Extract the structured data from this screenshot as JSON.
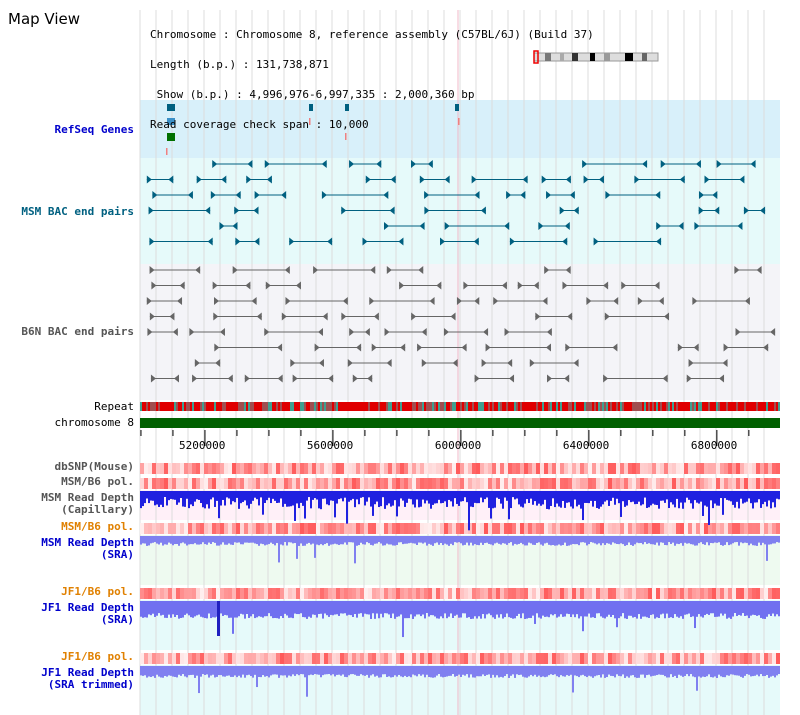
{
  "title": "Map View",
  "header": [
    {
      "key": "Chromosome",
      "value": "Chromosome 8, reference assembly (C57BL/6J) (Build 37)"
    },
    {
      "key": "Length (b.p.)",
      "value": "131,738,871"
    },
    {
      "key": "Show (b.p.)",
      "value": "4,996,976-6,997,335 : 2,000,360 bp"
    },
    {
      "key": "Read coverage check span",
      "value": "10,000"
    }
  ],
  "tracks": [
    {
      "id": "refseq",
      "label": "RefSeq Genes",
      "color": "#0000cc"
    },
    {
      "id": "msm-bac",
      "label": "MSM BAC end pairs",
      "color": "#006080"
    },
    {
      "id": "b6n-bac",
      "label": "B6N BAC end pairs",
      "color": "#555555"
    },
    {
      "id": "repeat",
      "label": "Repeat",
      "color": "#000000"
    },
    {
      "id": "chromosome",
      "label": "chromosome 8",
      "color": "#000000"
    },
    {
      "id": "dbsnp",
      "label": "dbSNP(Mouse)",
      "color": "#555555"
    },
    {
      "id": "msm-b6-pol-1",
      "label": "MSM/B6 pol.",
      "color": "#555555"
    },
    {
      "id": "msm-depth-cap",
      "label": "MSM Read Depth\n(Capillary)",
      "color": "#555555"
    },
    {
      "id": "msm-b6-pol-2",
      "label": "MSM/B6 pol.",
      "color": "#e08000"
    },
    {
      "id": "msm-depth-sra",
      "label": "MSM Read Depth\n(SRA)",
      "color": "#0000cc"
    },
    {
      "id": "jf1-b6-pol-1",
      "label": "JF1/B6 pol.",
      "color": "#e08000"
    },
    {
      "id": "jf1-depth-sra",
      "label": "JF1 Read Depth\n(SRA)",
      "color": "#0000cc"
    },
    {
      "id": "jf1-b6-pol-2",
      "label": "JF1/B6 pol.",
      "color": "#e08000"
    },
    {
      "id": "jf1-depth-trim",
      "label": "JF1 Read Depth\n(SRA trimmed)",
      "color": "#0000cc"
    }
  ],
  "axis": {
    "start": 4996976,
    "end": 6997335,
    "ticks": [
      "5200000",
      "5600000",
      "6000000",
      "6400000",
      "6800000"
    ]
  }
}
